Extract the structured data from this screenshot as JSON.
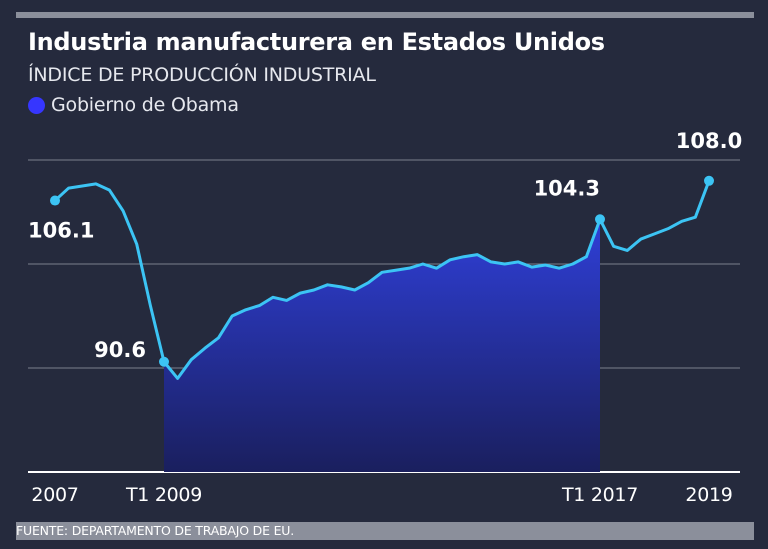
{
  "header": {
    "title": "Industria manufacturera en Estados Unidos",
    "subtitle": "ÍNDICE DE PRODUCCIÓN INDUSTRIAL"
  },
  "legend": {
    "label": "Gobierno de Obama",
    "color": "#3636ff"
  },
  "source": "FUENTE: DEPARTAMENTO DE TRABAJO DE EU.",
  "colors": {
    "background": "#252a3d",
    "line": "#3cc4f4",
    "area_top": "#2f3fd8",
    "area_bottom": "#1a1f5e",
    "grid": "#8b8f9b"
  },
  "chart_data": {
    "type": "area",
    "title": "Industria manufacturera en Estados Unidos",
    "subtitle": "ÍNDICE DE PRODUCCIÓN INDUSTRIAL",
    "xlabel": "",
    "ylabel": "",
    "ylim": [
      80,
      110
    ],
    "grid": true,
    "legend_position": "top-left",
    "x_ticks": [
      {
        "x": 2007.0,
        "label": "2007"
      },
      {
        "x": 2009.0,
        "label": "T1 2009"
      },
      {
        "x": 2017.0,
        "label": "T1 2017"
      },
      {
        "x": 2019.0,
        "label": "2019"
      }
    ],
    "highlight": {
      "name": "Gobierno de Obama",
      "x_start": 2009.0,
      "x_end": 2017.0
    },
    "annotations": [
      {
        "x": 2007.0,
        "y": 106.1,
        "label": "106.1",
        "position": "below"
      },
      {
        "x": 2009.0,
        "y": 90.6,
        "label": "90.6",
        "position": "left"
      },
      {
        "x": 2017.0,
        "y": 104.3,
        "label": "104.3",
        "position": "above"
      },
      {
        "x": 2019.0,
        "y": 108.0,
        "label": "108.0",
        "position": "above"
      }
    ],
    "series": [
      {
        "x": [
          2007.0,
          2007.25,
          2007.5,
          2007.75,
          2008.0,
          2008.25,
          2008.5,
          2008.75,
          2009.0,
          2009.25,
          2009.5,
          2009.75,
          2010.0,
          2010.25,
          2010.5,
          2010.75,
          2011.0,
          2011.25,
          2011.5,
          2011.75,
          2012.0,
          2012.25,
          2012.5,
          2012.75,
          2013.0,
          2013.25,
          2013.5,
          2013.75,
          2014.0,
          2014.25,
          2014.5,
          2014.75,
          2015.0,
          2015.25,
          2015.5,
          2015.75,
          2016.0,
          2016.25,
          2016.5,
          2016.75,
          2017.0,
          2017.25,
          2017.5,
          2017.75,
          2018.0,
          2018.25,
          2018.5,
          2018.75,
          2019.0
        ],
        "values": [
          106.1,
          107.3,
          107.5,
          107.7,
          107.1,
          105.1,
          101.9,
          96.0,
          90.6,
          89.0,
          90.8,
          91.9,
          92.9,
          95.0,
          95.6,
          96.0,
          96.8,
          96.5,
          97.2,
          97.5,
          98.0,
          97.8,
          97.5,
          98.2,
          99.2,
          99.4,
          99.6,
          100.0,
          99.6,
          100.4,
          100.7,
          100.9,
          100.2,
          100.0,
          100.2,
          99.7,
          99.9,
          99.6,
          100.0,
          100.7,
          104.3,
          101.7,
          101.3,
          102.4,
          102.9,
          103.4,
          104.1,
          104.5,
          108.0
        ]
      }
    ]
  }
}
